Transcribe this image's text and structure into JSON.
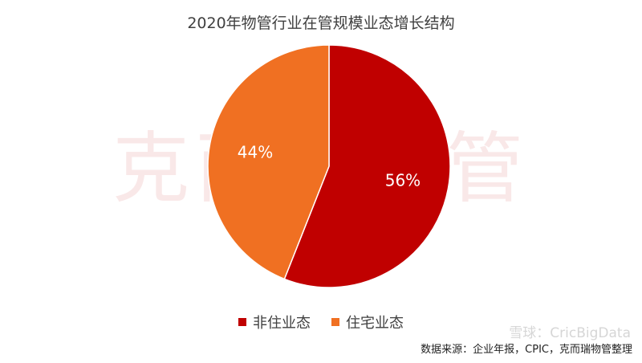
{
  "title": "2020年物管行业在管规模业态增长结构",
  "watermark": "克而瑞物管",
  "logo_watermark": "雪球：CricBigData",
  "source": "数据来源：企业年报，CPIC，克而瑞物管整理",
  "chart_data": {
    "type": "pie",
    "title": "2020年物管行业在管规模业态增长结构",
    "slices": [
      {
        "label": "非住业态",
        "value": 56,
        "display": "56%",
        "color": "#c00000"
      },
      {
        "label": "住宅业态",
        "value": 44,
        "display": "44%",
        "color": "#f07022"
      }
    ],
    "legend_position": "bottom"
  }
}
